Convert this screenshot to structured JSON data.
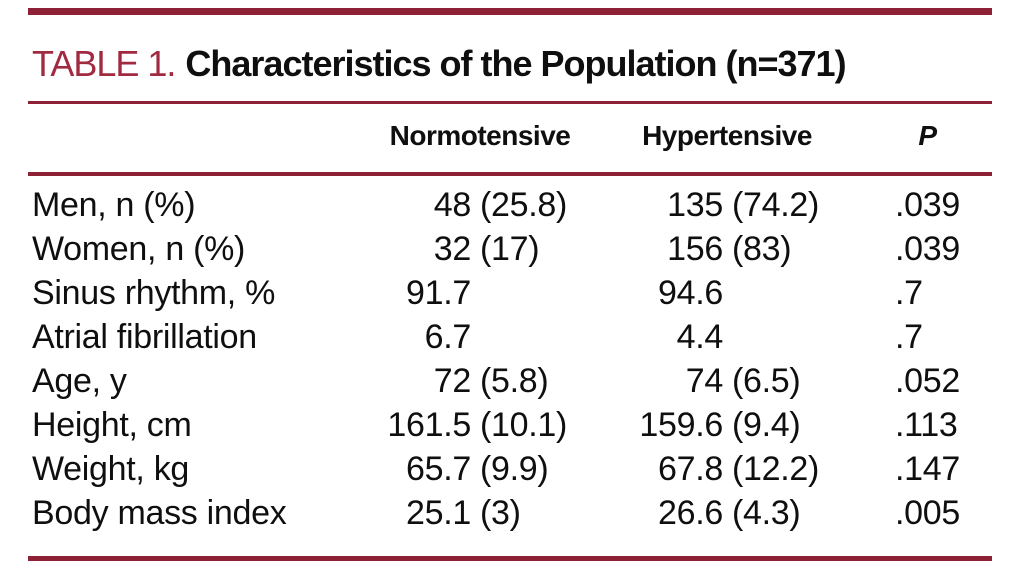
{
  "title": {
    "label": "TABLE 1.",
    "text": "Characteristics of the Population (n=371)"
  },
  "columns": {
    "normotensive": "Normotensive",
    "hypertensive": "Hypertensive",
    "p": "P"
  },
  "rows": [
    {
      "label": "Men, n (%)",
      "norm_num": "48",
      "norm_sd": "(25.8)",
      "hyp_num": "135",
      "hyp_sd": "(74.2)",
      "p": ".039"
    },
    {
      "label": "Women, n (%)",
      "norm_num": "32",
      "norm_sd": "(17)",
      "hyp_num": "156",
      "hyp_sd": "(83)",
      "p": ".039"
    },
    {
      "label": "Sinus rhythm, %",
      "norm_num": "91.7",
      "norm_sd": "",
      "hyp_num": "94.6",
      "hyp_sd": "",
      "p": ".7"
    },
    {
      "label": "Atrial fibrillation",
      "norm_num": "6.7",
      "norm_sd": "",
      "hyp_num": "4.4",
      "hyp_sd": "",
      "p": ".7"
    },
    {
      "label": "Age, y",
      "norm_num": "72",
      "norm_sd": "(5.8)",
      "hyp_num": "74",
      "hyp_sd": "(6.5)",
      "p": ".052"
    },
    {
      "label": "Height, cm",
      "norm_num": "161.5",
      "norm_sd": "(10.1)",
      "hyp_num": "159.6",
      "hyp_sd": "(9.4)",
      "p": ".113"
    },
    {
      "label": "Weight, kg",
      "norm_num": "65.7",
      "norm_sd": "(9.9)",
      "hyp_num": "67.8",
      "hyp_sd": "(12.2)",
      "p": ".147"
    },
    {
      "label": "Body mass index",
      "norm_num": "25.1",
      "norm_sd": "(3)",
      "hyp_num": "26.6",
      "hyp_sd": "(4.3)",
      "p": ".005"
    }
  ],
  "colors": {
    "rule_maroon": "#8e2136",
    "title_maroon": "#a12a40",
    "text_black": "#0f0f0f",
    "background": "#ffffff"
  }
}
